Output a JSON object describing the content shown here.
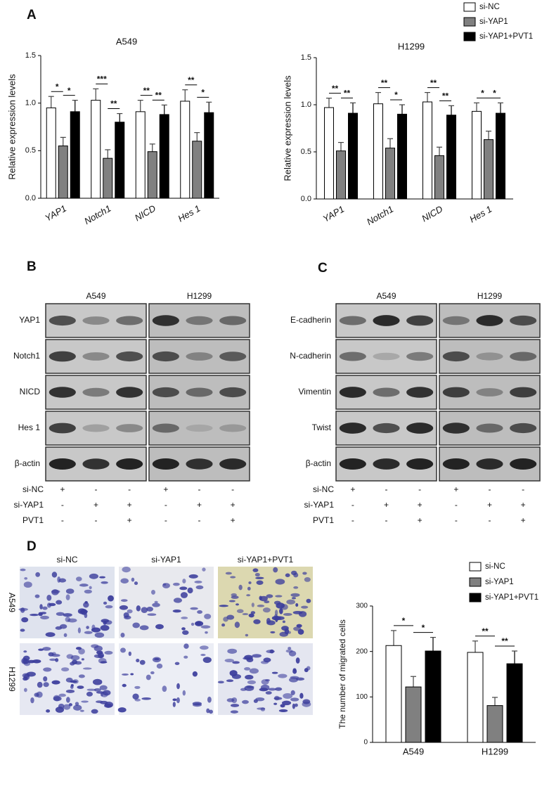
{
  "panel_labels": [
    "A",
    "B",
    "C",
    "D"
  ],
  "chart_data": [
    {
      "type": "bar",
      "title": "A549",
      "y_label": "Relative expression levels",
      "categories": [
        "YAP1",
        "Notch1",
        "NICD",
        "Hes 1"
      ],
      "series": [
        {
          "name": "si-NC",
          "color": "#ffffff",
          "values": [
            0.95,
            1.03,
            0.91,
            1.02
          ],
          "errors": [
            0.12,
            0.12,
            0.12,
            0.12
          ]
        },
        {
          "name": "si-YAP1",
          "color": "#808080",
          "values": [
            0.55,
            0.42,
            0.49,
            0.6
          ],
          "errors": [
            0.09,
            0.09,
            0.08,
            0.09
          ]
        },
        {
          "name": "si-YAP1+PVT1",
          "color": "#000000",
          "values": [
            0.91,
            0.8,
            0.88,
            0.9
          ],
          "errors": [
            0.12,
            0.09,
            0.1,
            0.11
          ]
        }
      ],
      "annotations": [
        [
          "*",
          "*"
        ],
        [
          "***",
          "**"
        ],
        [
          "**",
          "**"
        ],
        [
          "**",
          "*"
        ]
      ],
      "ylim": [
        0,
        1.5
      ],
      "yticks": [
        {
          "value": 0,
          "label": "0.0"
        },
        {
          "value": 0.5,
          "label": "0.5"
        },
        {
          "value": 1,
          "label": "1.0"
        },
        {
          "value": 1.5,
          "label": "1.5"
        }
      ],
      "legend": "upper right"
    },
    {
      "type": "bar",
      "title": "H1299",
      "y_label": "Relative expression levels",
      "categories": [
        "YAP1",
        "Notch1",
        "NICD",
        "Hes 1"
      ],
      "series": [
        {
          "color": "#ffffff",
          "values": [
            0.97,
            1.01,
            1.03,
            0.93
          ],
          "errors": [
            0.1,
            0.12,
            0.1,
            0.09
          ]
        },
        {
          "color": "#808080",
          "values": [
            0.51,
            0.54,
            0.46,
            0.63
          ],
          "errors": [
            0.09,
            0.1,
            0.09,
            0.09
          ]
        },
        {
          "color": "#000000",
          "values": [
            0.91,
            0.9,
            0.89,
            0.91
          ],
          "errors": [
            0.11,
            0.1,
            0.1,
            0.11
          ]
        }
      ],
      "annotations": [
        [
          "**",
          "**"
        ],
        [
          "**",
          "*"
        ],
        [
          "**",
          "**"
        ],
        [
          "*",
          "*"
        ]
      ],
      "ylim": [
        0,
        1.5
      ],
      "yticks": [
        {
          "value": 0,
          "label": "0.0"
        },
        {
          "value": 0.5,
          "label": "0.5"
        },
        {
          "value": 1,
          "label": "1.0"
        },
        {
          "value": 1.5,
          "label": "1.5"
        }
      ]
    },
    {
      "type": "bar",
      "y_label": "The number of migrated cells",
      "categories": [
        "A549",
        "H1299"
      ],
      "series": [
        {
          "name": "si-NC",
          "color": "#ffffff",
          "values": [
            213,
            198
          ],
          "errors": [
            33,
            25
          ]
        },
        {
          "name": "si-YAP1",
          "color": "#808080",
          "values": [
            122,
            81
          ],
          "errors": [
            23,
            18
          ]
        },
        {
          "name": "si-YAP1+PVT1",
          "color": "#000000",
          "values": [
            201,
            173
          ],
          "errors": [
            30,
            28
          ]
        }
      ],
      "annotations": [
        [
          "*",
          "*"
        ],
        [
          "**",
          "**"
        ]
      ],
      "ylim": [
        0,
        300
      ],
      "yticks": [
        0,
        100,
        200,
        300
      ],
      "legend": "upper right"
    }
  ],
  "blots": [
    {
      "cell_lines": [
        "A549",
        "H1299"
      ],
      "proteins": [
        "YAP1",
        "Notch1",
        "NICD",
        "Hes 1",
        "β-actin"
      ],
      "conditions": [
        {
          "name": "si-NC",
          "marks": [
            "+",
            "-",
            "-",
            "+",
            "-",
            "-"
          ]
        },
        {
          "name": "si-YAP1",
          "marks": [
            "-",
            "+",
            "+",
            "-",
            "+",
            "+"
          ]
        },
        {
          "name": "PVT1",
          "marks": [
            "-",
            "-",
            "+",
            "-",
            "-",
            "+"
          ]
        }
      ]
    },
    {
      "cell_lines": [
        "A549",
        "H1299"
      ],
      "proteins": [
        "E-cadherin",
        "N-cadherin",
        "Vimentin",
        "Twist",
        "β-actin"
      ],
      "conditions": [
        {
          "name": "si-NC",
          "marks": [
            "+",
            "-",
            "-",
            "+",
            "-",
            "-"
          ]
        },
        {
          "name": "si-YAP1",
          "marks": [
            "-",
            "+",
            "+",
            "-",
            "+",
            "+"
          ]
        },
        {
          "name": "PVT1",
          "marks": [
            "-",
            "-",
            "+",
            "-",
            "-",
            "+"
          ]
        }
      ]
    }
  ],
  "migration_images": {
    "columns": [
      "si-NC",
      "si-YAP1",
      "si-YAP1+PVT1"
    ],
    "rows": [
      "A549",
      "H1299"
    ]
  }
}
